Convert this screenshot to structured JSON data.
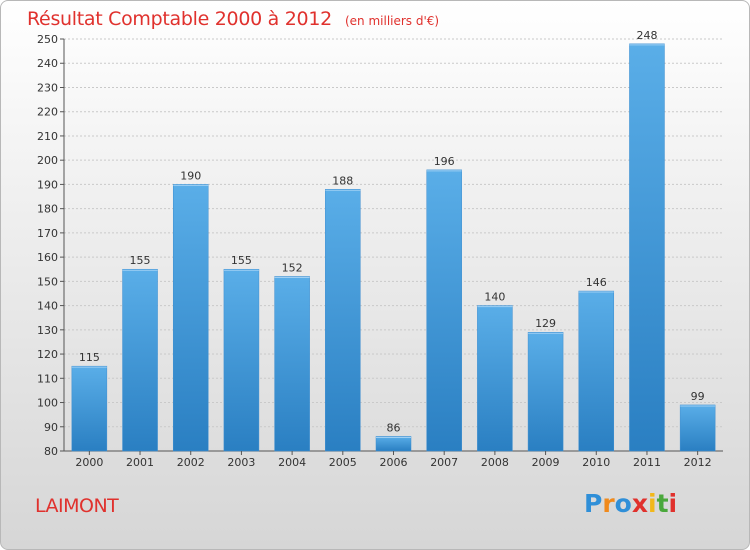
{
  "header": {
    "title": "Résultat Comptable 2000 à 2012",
    "subtitle": "(en milliers d'€)"
  },
  "commune": "LAIMONT",
  "logo": {
    "text": "Proxiti",
    "letters": [
      {
        "ch": "P",
        "color": "#2f8fd8"
      },
      {
        "ch": "r",
        "color": "#f08a1c"
      },
      {
        "ch": "o",
        "color": "#2f8fd8"
      },
      {
        "ch": "x",
        "color": "#e0312d"
      },
      {
        "ch": "i",
        "color": "#f2b81a"
      },
      {
        "ch": "t",
        "color": "#4aa83c"
      },
      {
        "ch": "i",
        "color": "#e0312d"
      }
    ]
  },
  "colors": {
    "accent": "#e0312d",
    "bar_top": "#5aaee8",
    "bar_bottom": "#2a7fc2"
  },
  "chart_data": {
    "type": "bar",
    "title": "Résultat Comptable 2000 à 2012",
    "subtitle": "(en milliers d'€)",
    "xlabel": "",
    "ylabel": "",
    "categories": [
      "2000",
      "2001",
      "2002",
      "2003",
      "2004",
      "2005",
      "2006",
      "2007",
      "2008",
      "2009",
      "2010",
      "2011",
      "2012"
    ],
    "values": [
      115,
      155,
      190,
      155,
      152,
      188,
      86,
      196,
      140,
      129,
      146,
      248,
      99
    ],
    "ylim": [
      80,
      250
    ],
    "ytick_step": 10,
    "grid": true,
    "legend": "none"
  }
}
